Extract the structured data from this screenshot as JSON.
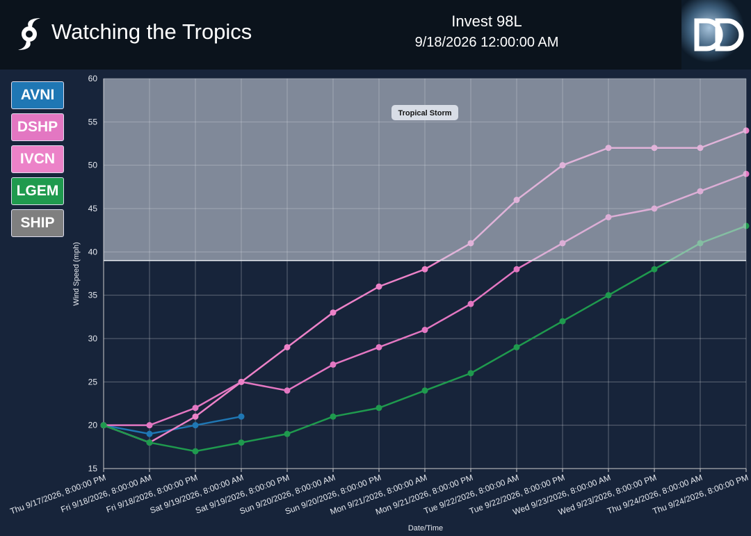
{
  "header": {
    "title": "Watching the Tropics",
    "storm": "Invest 98L",
    "datetime": "9/18/2026 12:00:00 AM"
  },
  "chart_data": {
    "type": "line",
    "x_label": "Date/Time",
    "y_label": "Wind Speed (mph)",
    "categories": [
      "Thu 9/17/2026, 8:00:00 PM",
      "Fri 9/18/2026, 8:00:00 AM",
      "Fri 9/18/2026, 8:00:00 PM",
      "Sat 9/19/2026, 8:00:00 AM",
      "Sat 9/19/2026, 8:00:00 PM",
      "Sun 9/20/2026, 8:00:00 AM",
      "Sun 9/20/2026, 8:00:00 PM",
      "Mon 9/21/2026, 8:00:00 AM",
      "Mon 9/21/2026, 8:00:00 PM",
      "Tue 9/22/2026, 8:00:00 AM",
      "Tue 9/22/2026, 8:00:00 PM",
      "Wed 9/23/2026, 8:00:00 AM",
      "Wed 9/23/2026, 8:00:00 PM",
      "Thu 9/24/2026, 8:00:00 AM",
      "Thu 9/24/2026, 8:00:00 PM"
    ],
    "series": [
      {
        "name": "AVNI",
        "color": "#1f77b4",
        "values": [
          20,
          19,
          20,
          21,
          null,
          null,
          null,
          null,
          null,
          null,
          null,
          null,
          null,
          null,
          null
        ]
      },
      {
        "name": "DSHP",
        "color": "#e377c2",
        "values": [
          20,
          20,
          22,
          25,
          24,
          27,
          29,
          31,
          34,
          38,
          41,
          44,
          45,
          47,
          49
        ]
      },
      {
        "name": "IVCN",
        "color": "#ec82c8",
        "values": [
          20,
          18,
          21,
          25,
          29,
          33,
          36,
          38,
          41,
          46,
          50,
          52,
          52,
          52,
          54
        ]
      },
      {
        "name": "LGEM",
        "color": "#1f9a4e",
        "values": [
          20,
          18,
          17,
          18,
          19,
          21,
          22,
          24,
          26,
          29,
          32,
          35,
          38,
          41,
          43
        ]
      },
      {
        "name": "SHIP",
        "color": "#7f7f7f",
        "values": [
          null,
          null,
          null,
          null,
          null,
          null,
          null,
          null,
          null,
          null,
          null,
          null,
          null,
          null,
          null
        ]
      }
    ],
    "bands": [
      {
        "label": "Tropical Storm",
        "from": 39,
        "to": 60
      }
    ],
    "ylim": [
      15,
      60
    ],
    "yticks": [
      15,
      20,
      25,
      30,
      35,
      40,
      45,
      50,
      55,
      60
    ],
    "grid": true
  }
}
